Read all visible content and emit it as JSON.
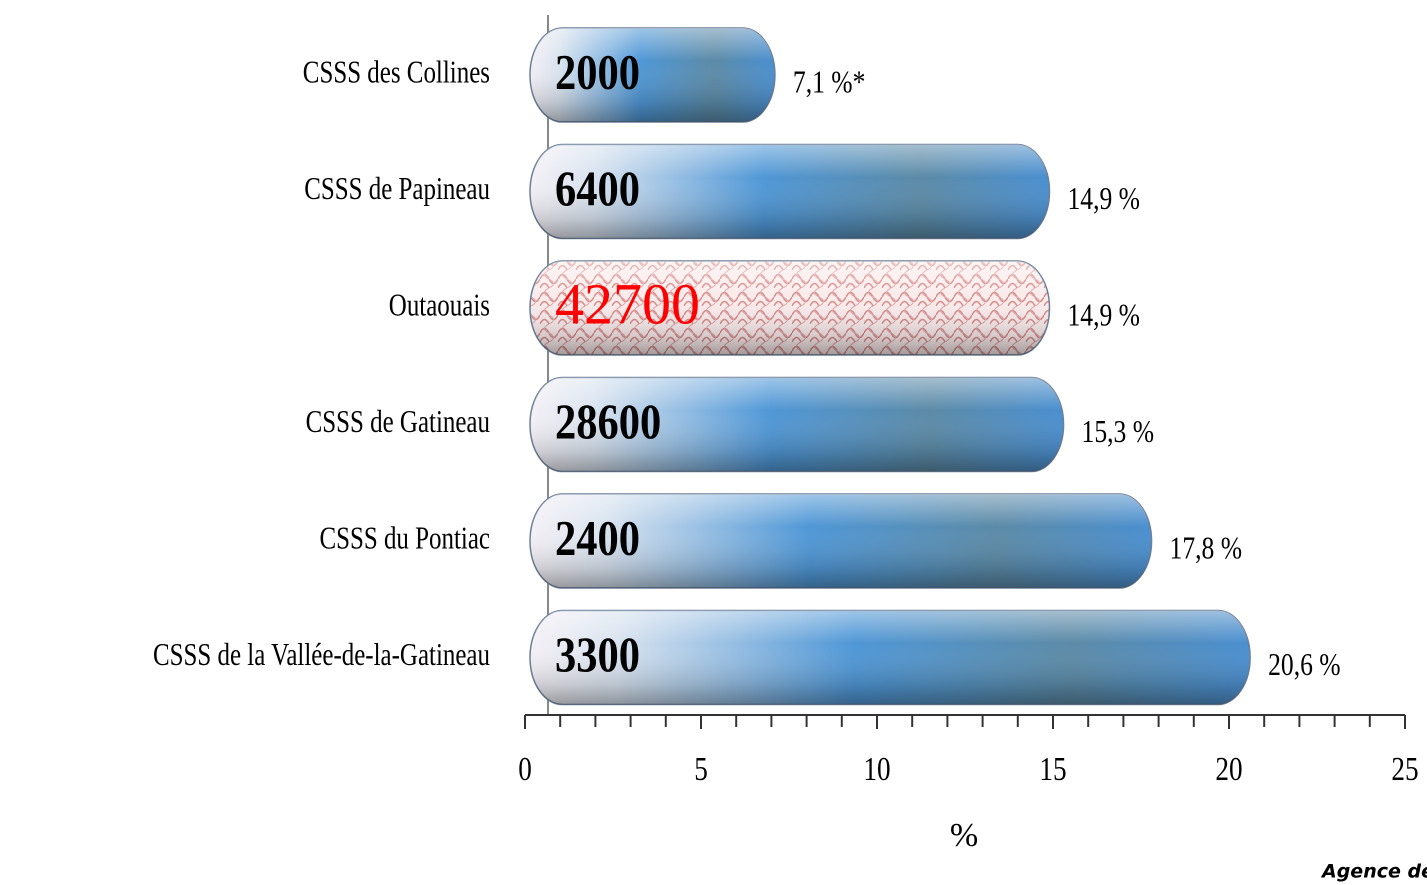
{
  "chart_data": {
    "type": "bar",
    "orientation": "horizontal",
    "categories": [
      "CSSS des Collines",
      "CSSS de Papineau",
      "Outaouais",
      "CSSS de Gatineau",
      "CSSS du Pontiac",
      "CSSS de la Vallée-de-la-Gatineau"
    ],
    "values": [
      7.1,
      14.9,
      14.9,
      15.3,
      17.8,
      20.6
    ],
    "value_labels": [
      "7,1 %*",
      "14,9 %",
      "14,9  %",
      "15,3 %",
      "17,8 %",
      "20,6 %"
    ],
    "counts": [
      2000,
      6400,
      42700,
      28600,
      2400,
      3300
    ],
    "colors": [
      "#4f97d6",
      "#4f97d6",
      "#f0c4c4",
      "#4f97d6",
      "#4f97d6",
      "#4f97d6"
    ],
    "count_colors": [
      "#000000",
      "#000000",
      "#ff0000",
      "#000000",
      "#000000",
      "#000000"
    ],
    "xlim": [
      0,
      25
    ],
    "xticks": [
      0,
      5,
      10,
      15,
      20,
      25
    ],
    "minor_tick_step": 1,
    "xlabel": "%",
    "footer": "Agence de l"
  }
}
